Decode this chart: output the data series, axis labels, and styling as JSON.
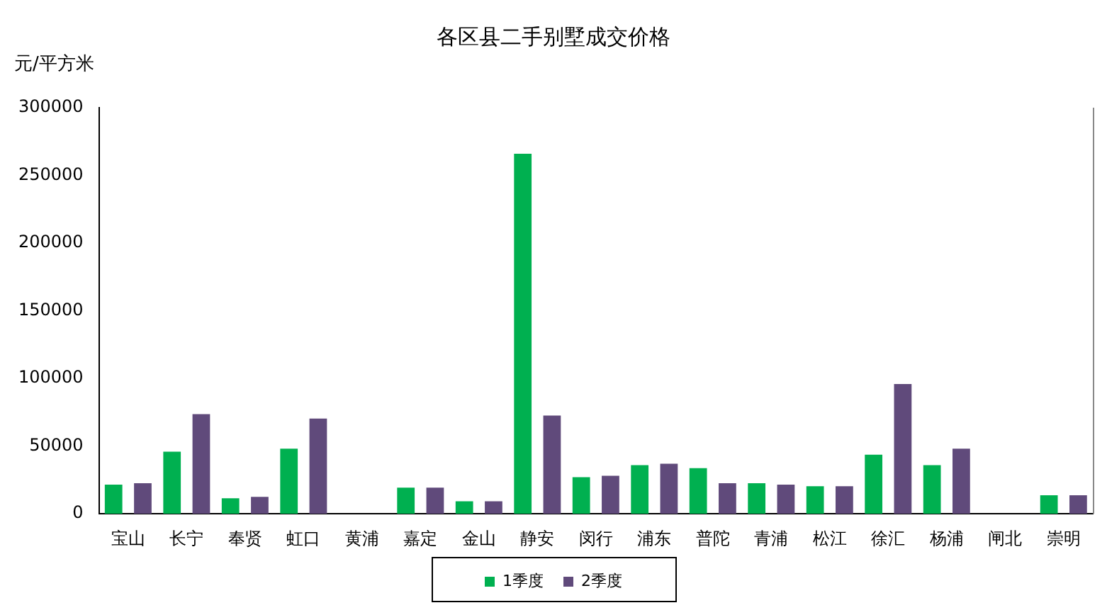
{
  "chart_data": {
    "type": "bar",
    "title": "各区县二手别墅成交价格",
    "ylabel": "元/平方米",
    "categories": [
      "宝山",
      "长宁",
      "奉贤",
      "虹口",
      "黄浦",
      "嘉定",
      "金山",
      "静安",
      "闵行",
      "浦东",
      "普陀",
      "青浦",
      "松江",
      "徐汇",
      "杨浦",
      "闸北",
      "崇明"
    ],
    "series": [
      {
        "name": "1季度",
        "color": "#00b050",
        "values": [
          21500,
          45900,
          11500,
          48100,
          null,
          19300,
          9300,
          266000,
          27000,
          35900,
          33700,
          22600,
          20400,
          43700,
          35900,
          null,
          13700
        ]
      },
      {
        "name": "2季度",
        "color": "#604a7b",
        "values": [
          22600,
          73700,
          12600,
          70400,
          null,
          19300,
          9300,
          72600,
          28100,
          37000,
          22600,
          21500,
          20400,
          95900,
          48100,
          null,
          13700
        ]
      }
    ],
    "ylim": [
      0,
      300000
    ],
    "yticks": [
      0,
      50000,
      100000,
      150000,
      200000,
      250000,
      300000
    ],
    "grid": false,
    "legend": "bottom"
  }
}
